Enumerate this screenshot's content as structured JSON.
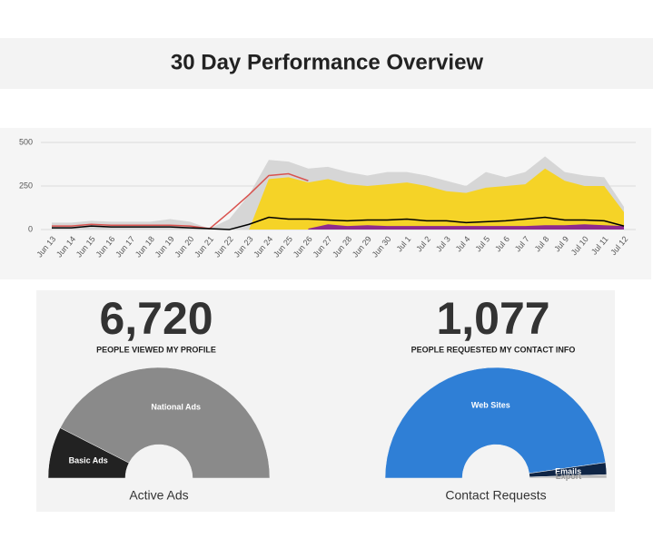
{
  "header": {
    "title": "30 Day Performance Overview"
  },
  "chart_data": [
    {
      "type": "area",
      "categories": [
        "Jun 13",
        "Jun 14",
        "Jun 15",
        "Jun 16",
        "Jun 17",
        "Jun 18",
        "Jun 19",
        "Jun 20",
        "Jun 21",
        "Jun 22",
        "Jun 23",
        "Jun 24",
        "Jun 25",
        "Jun 26",
        "Jun 27",
        "Jun 28",
        "Jun 29",
        "Jun 30",
        "Jul 1",
        "Jul 2",
        "Jul 3",
        "Jul 4",
        "Jul 5",
        "Jul 6",
        "Jul 7",
        "Jul 8",
        "Jul 9",
        "Jul 10",
        "Jul 11",
        "Jul 12"
      ],
      "ylim": [
        0,
        500
      ],
      "yticks": [
        0,
        250,
        500
      ],
      "grid": true,
      "series": [
        {
          "type": "area",
          "color": "#d6d6d6",
          "values": [
            40,
            40,
            50,
            45,
            45,
            45,
            60,
            45,
            5,
            60,
            200,
            400,
            390,
            350,
            360,
            330,
            310,
            330,
            330,
            310,
            280,
            250,
            330,
            300,
            330,
            420,
            330,
            310,
            300,
            130
          ]
        },
        {
          "type": "area",
          "color": "#f5d327",
          "values": [
            null,
            null,
            null,
            null,
            null,
            null,
            null,
            null,
            null,
            null,
            0,
            290,
            300,
            270,
            290,
            260,
            250,
            260,
            270,
            250,
            220,
            210,
            240,
            250,
            260,
            350,
            280,
            250,
            250,
            100
          ]
        },
        {
          "type": "area",
          "color": "#8e2a8e",
          "values": [
            null,
            null,
            null,
            null,
            null,
            null,
            null,
            null,
            null,
            null,
            null,
            null,
            null,
            5,
            30,
            20,
            25,
            20,
            20,
            20,
            20,
            20,
            20,
            20,
            20,
            25,
            25,
            30,
            25,
            20
          ]
        },
        {
          "type": "line",
          "color": "#d9534f",
          "values": [
            20,
            20,
            30,
            25,
            25,
            25,
            25,
            20,
            5,
            100,
            200,
            310,
            320,
            280,
            null,
            null,
            null,
            null,
            null,
            null,
            null,
            null,
            null,
            null,
            null,
            null,
            null,
            null,
            null,
            null
          ]
        },
        {
          "type": "line",
          "color": "#000000",
          "values": [
            10,
            10,
            20,
            15,
            15,
            15,
            15,
            10,
            5,
            0,
            30,
            70,
            60,
            60,
            55,
            50,
            55,
            55,
            60,
            50,
            50,
            40,
            45,
            50,
            60,
            70,
            55,
            55,
            50,
            20
          ]
        }
      ]
    },
    {
      "type": "pie",
      "headline": "6,720",
      "headline_caption": "PEOPLE VIEWED MY PROFILE",
      "title": "Active Ads",
      "categories": [
        "Basic Ads",
        "National Ads"
      ],
      "values": [
        15,
        85
      ],
      "colors": [
        "#222222",
        "#8a8a8a"
      ]
    },
    {
      "type": "pie",
      "headline": "1,077",
      "headline_caption": "PEOPLE REQUESTED MY CONTACT INFO",
      "title": "Contact Requests",
      "categories": [
        "Web Sites",
        "Emails",
        "Export"
      ],
      "values": [
        95.5,
        3.5,
        1
      ],
      "colors": [
        "#2f7fd6",
        "#0f2545",
        "#bbbbbb"
      ]
    }
  ]
}
